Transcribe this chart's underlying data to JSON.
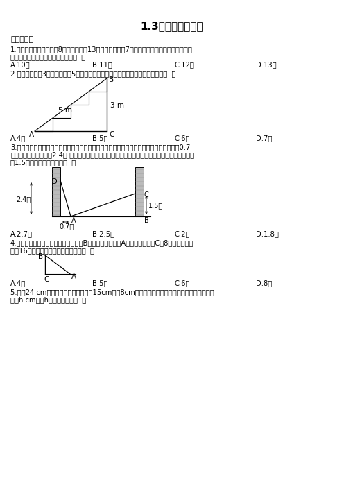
{
  "title": "1.3勾股定理的应用",
  "section1": "一、单选题",
  "q1": "1.校园内有两棵树，相距8米，一棵树高13米，另一棵树高7米，一只小鸟从一棵树的顶端飞到",
  "q1b": "另一棵树的顶端，则小鸟至少要飞（  ）",
  "q1_options": [
    "A.10米",
    "B.11米",
    "C.12米",
    "D.13米"
  ],
  "q2": "2.如图，在高为3米，斜坡长为5米的楼梯台阶上铺地毯，则地毯的长度为至少要（  ）",
  "q2_options": [
    "A.4米",
    "B.5米",
    "C.6米",
    "D.7米"
  ],
  "q3": "3.如图，小巷左右两侧是竖直的墙壁，一架梯子斜靠在左墙时，梯子底端到左墙角的距离为0.7",
  "q3b": "米，梯子顶端距离地面2.4米.若梯子底端的位置保持不动，将梯子斜靠在右墙时，梯子顶端距离地",
  "q3c": "面1.5米，则小巷的宽度为（  ）",
  "q3_options": [
    "A.2.7米",
    "B.2.5米",
    "C.2米",
    "D.1.8米"
  ],
  "q4": "4.如图所示，台风过后某小学的旗杆在B处断裂，旗杆顶部A落在离旗杆底部C点8米处，已知旗",
  "q4b": "杆长16米，则旗杆断裂的地方距底部（  ）",
  "q4_options": [
    "A.4米",
    "B.5米",
    "C.6米",
    "D.8米"
  ],
  "q5": "5.将根24 cm的筷子，置于底面直径为15cm，高8cm的圆柱形水杯中，设筷子露在杯子外面的长",
  "q5b": "度为h cm，则h的取值范围是（  ）"
}
